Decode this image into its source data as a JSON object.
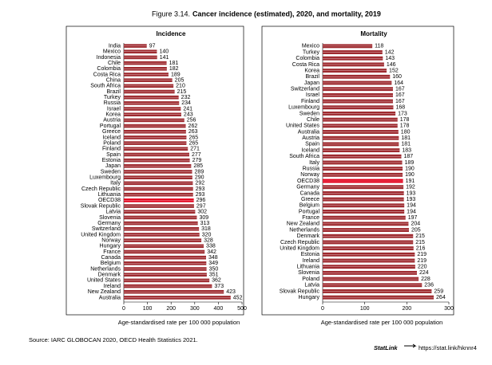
{
  "figure_number": "Figure 3.14.",
  "title": "Cancer incidence (estimated), 2020, and mortality, 2019",
  "source": "Source: IARC GLOBOCAN 2020, OECD Health Statistics 2021.",
  "statlink_label": "StatLink",
  "statlink_url": "https://stat.link/hknnr4",
  "chart_data": [
    {
      "type": "hbar",
      "title": "Incidence",
      "x_label": "Age-standardised rate per 100 000 population",
      "categories": [
        "India",
        "Mexico",
        "Indonesia",
        "Chile",
        "Colombia",
        "Costa Rica",
        "China",
        "South Africa",
        "Brazil",
        "Turkey",
        "Russia",
        "Israel",
        "Korea",
        "Austria",
        "Portugal",
        "Greece",
        "Iceland",
        "Poland",
        "Finland",
        "Spain",
        "Estonia",
        "Japan",
        "Sweden",
        "Luxembourg",
        "Italy",
        "Czech Republic",
        "Lithuania",
        "OECD38",
        "Slovak Republic",
        "Latvia",
        "Slovenia",
        "Germany",
        "Switzerland",
        "United Kingdom",
        "Norway",
        "Hungary",
        "France",
        "Canada",
        "Belgium",
        "Netherlands",
        "Denmark",
        "United States",
        "Ireland",
        "New Zealand",
        "Australia"
      ],
      "values": [
        97,
        140,
        141,
        181,
        182,
        189,
        205,
        210,
        215,
        232,
        234,
        241,
        243,
        256,
        262,
        263,
        265,
        265,
        271,
        277,
        279,
        285,
        289,
        290,
        292,
        293,
        293,
        296,
        297,
        302,
        309,
        313,
        318,
        320,
        328,
        338,
        342,
        348,
        349,
        350,
        351,
        362,
        373,
        423,
        452
      ],
      "colors": [
        "#9e2a2f",
        "#9e2a2f",
        "#9e2a2f",
        "#9e2a2f",
        "#9e2a2f",
        "#9e2a2f",
        "#9e2a2f",
        "#9e2a2f",
        "#9e2a2f",
        "#9e2a2f",
        "#9e2a2f",
        "#9e2a2f",
        "#9e2a2f",
        "#9e2a2f",
        "#9e2a2f",
        "#9e2a2f",
        "#9e2a2f",
        "#9e2a2f",
        "#9e2a2f",
        "#9e2a2f",
        "#9e2a2f",
        "#9e2a2f",
        "#9e2a2f",
        "#9e2a2f",
        "#9e2a2f",
        "#9e2a2f",
        "#9e2a2f",
        "#e3001b",
        "#9e2a2f",
        "#9e2a2f",
        "#9e2a2f",
        "#9e2a2f",
        "#9e2a2f",
        "#9e2a2f",
        "#9e2a2f",
        "#9e2a2f",
        "#9e2a2f",
        "#9e2a2f",
        "#9e2a2f",
        "#9e2a2f",
        "#9e2a2f",
        "#9e2a2f",
        "#9e2a2f",
        "#9e2a2f",
        "#9e2a2f"
      ],
      "xlim": [
        0,
        500
      ],
      "xticks": [
        0,
        100,
        200,
        300,
        400,
        500
      ],
      "grid": false
    },
    {
      "type": "hbar",
      "title": "Mortality",
      "x_label": "Age-standardised rate per 100 000 population",
      "categories": [
        "Mexico",
        "Turkey",
        "Colombia",
        "Costa Rica",
        "Korea",
        "Brazil",
        "Japan",
        "Switzerland",
        "Israel",
        "Finland",
        "Luxembourg",
        "Sweden",
        "Chile",
        "United States",
        "Australia",
        "Austria",
        "Spain",
        "Iceland",
        "South Africa",
        "Italy",
        "Russia",
        "Norway",
        "OECD38",
        "Germany",
        "Canada",
        "Greece",
        "Belgium",
        "Portugal",
        "France",
        "New Zealand",
        "Netherlands",
        "Denmark",
        "Czech Republic",
        "United Kingdom",
        "Estonia",
        "Ireland",
        "Lithuania",
        "Slovenia",
        "Poland",
        "Latvia",
        "Slovak Republic",
        "Hungary"
      ],
      "values": [
        118,
        142,
        143,
        146,
        152,
        160,
        164,
        167,
        167,
        167,
        168,
        173,
        178,
        178,
        180,
        181,
        181,
        183,
        187,
        189,
        190,
        190,
        191,
        192,
        193,
        193,
        194,
        194,
        197,
        204,
        205,
        215,
        215,
        216,
        219,
        219,
        220,
        224,
        228,
        236,
        259,
        264
      ],
      "colors": [
        "#9e2a2f",
        "#9e2a2f",
        "#9e2a2f",
        "#9e2a2f",
        "#9e2a2f",
        "#9e2a2f",
        "#9e2a2f",
        "#9e2a2f",
        "#9e2a2f",
        "#9e2a2f",
        "#9e2a2f",
        "#9e2a2f",
        "#9e2a2f",
        "#9e2a2f",
        "#9e2a2f",
        "#9e2a2f",
        "#9e2a2f",
        "#9e2a2f",
        "#9e2a2f",
        "#9e2a2f",
        "#9e2a2f",
        "#9e2a2f",
        "#e3001b",
        "#9e2a2f",
        "#9e2a2f",
        "#9e2a2f",
        "#9e2a2f",
        "#9e2a2f",
        "#9e2a2f",
        "#9e2a2f",
        "#9e2a2f",
        "#9e2a2f",
        "#9e2a2f",
        "#9e2a2f",
        "#9e2a2f",
        "#9e2a2f",
        "#9e2a2f",
        "#9e2a2f",
        "#9e2a2f",
        "#9e2a2f",
        "#9e2a2f",
        "#9e2a2f"
      ],
      "xlim": [
        0,
        300
      ],
      "xticks": [
        0,
        100,
        200,
        300
      ],
      "grid": false
    }
  ]
}
